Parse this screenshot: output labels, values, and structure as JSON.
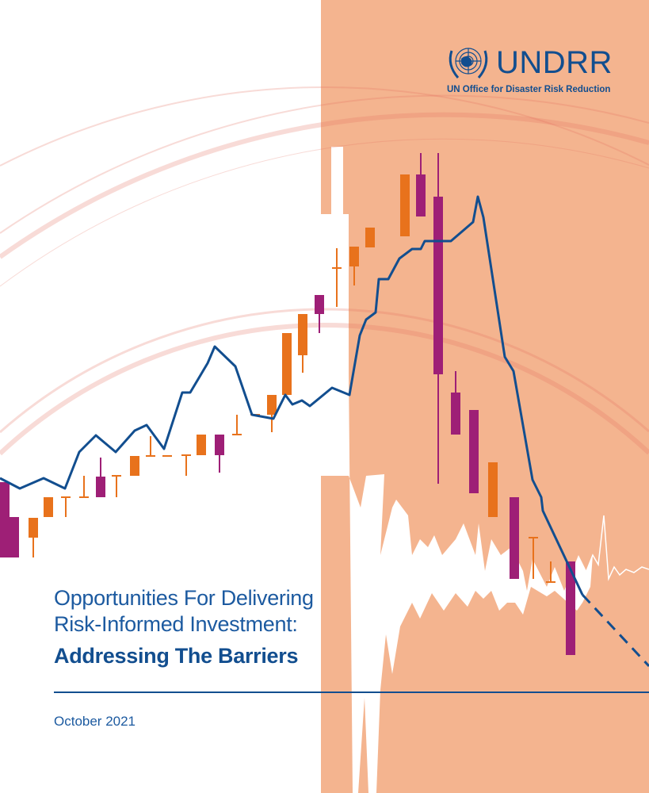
{
  "logo": {
    "name": "UNDRR",
    "subtitle": "UN Office for Disaster Risk Reduction"
  },
  "title": {
    "line1": "Opportunities For Delivering",
    "line2": "Risk-Informed Investment:",
    "line3": "Addressing The Barriers"
  },
  "date": "October 2021",
  "colors": {
    "peach": "#f4b48f",
    "orange": "#e8721c",
    "purple": "#9e1f76",
    "blue": "#124e8f"
  }
}
